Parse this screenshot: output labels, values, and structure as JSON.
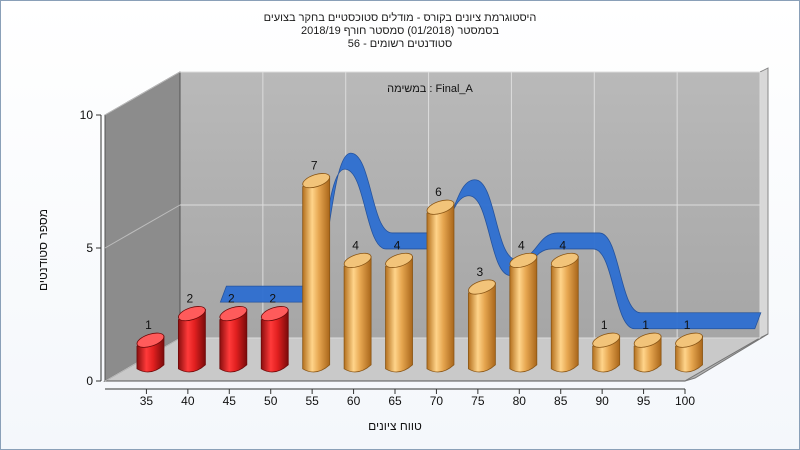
{
  "title": {
    "line1": "היסטוגרמת ציונים בקורס - מודלים סטוכסטיים בחקר בצועים",
    "line2": "בסמסטר  (01/2018)  סמסטר חורף  2018/19",
    "line3": "סטודנטים רשומים - 56"
  },
  "chart_data": {
    "type": "bar",
    "subtitle": "במשימה : Final_A",
    "xlabel": "טווח ציונים",
    "ylabel": "מספר סטודנטים",
    "categories": [
      "35",
      "40",
      "45",
      "50",
      "55",
      "60",
      "65",
      "70",
      "75",
      "80",
      "85",
      "90",
      "95",
      "100"
    ],
    "values": [
      1,
      2,
      2,
      2,
      7,
      4,
      4,
      6,
      3,
      4,
      4,
      1,
      1,
      1
    ],
    "ylim": [
      0,
      10
    ],
    "yticks": [
      0,
      5,
      10
    ],
    "grid": true,
    "bar_colors": [
      "#d62020",
      "#d62020",
      "#d62020",
      "#d62020",
      "#e3a24a",
      "#e3a24a",
      "#e3a24a",
      "#e3a24a",
      "#e3a24a",
      "#e3a24a",
      "#e3a24a",
      "#e3a24a",
      "#e3a24a",
      "#e3a24a"
    ],
    "trend_color": "#2e6fd1"
  }
}
